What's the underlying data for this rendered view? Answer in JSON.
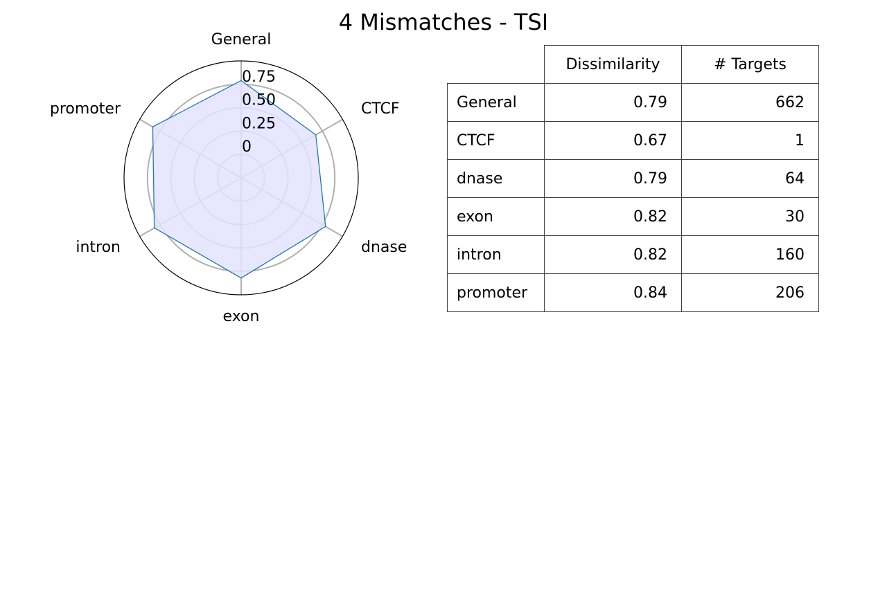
{
  "title": "4 Mismatches - TSI",
  "chart_data": [
    {
      "type": "radar",
      "categories": [
        "General",
        "CTCF",
        "dnase",
        "exon",
        "intron",
        "promoter"
      ],
      "series": [
        {
          "values": [
            0.79,
            0.67,
            0.79,
            0.82,
            0.82,
            0.84
          ]
        }
      ],
      "radial_ticks": [
        "0",
        "0.25",
        "0.50",
        "0.75"
      ],
      "radial_tick_values": [
        0,
        0.25,
        0.5,
        0.75
      ],
      "rlim": [
        -0.25,
        1.0
      ],
      "grid": true,
      "colors": {
        "line": "#1f77b4",
        "fill": "#e3e3ff",
        "grid": "#b0b0b0",
        "frame": "#000000"
      }
    },
    {
      "type": "table",
      "columns": [
        "",
        "Dissimilarity",
        "# Targets"
      ],
      "rows": [
        [
          "General",
          "0.79",
          "662"
        ],
        [
          "CTCF",
          "0.67",
          "1"
        ],
        [
          "dnase",
          "0.79",
          "64"
        ],
        [
          "exon",
          "0.82",
          "30"
        ],
        [
          "intron",
          "0.82",
          "160"
        ],
        [
          "promoter",
          "0.84",
          "206"
        ]
      ]
    }
  ]
}
